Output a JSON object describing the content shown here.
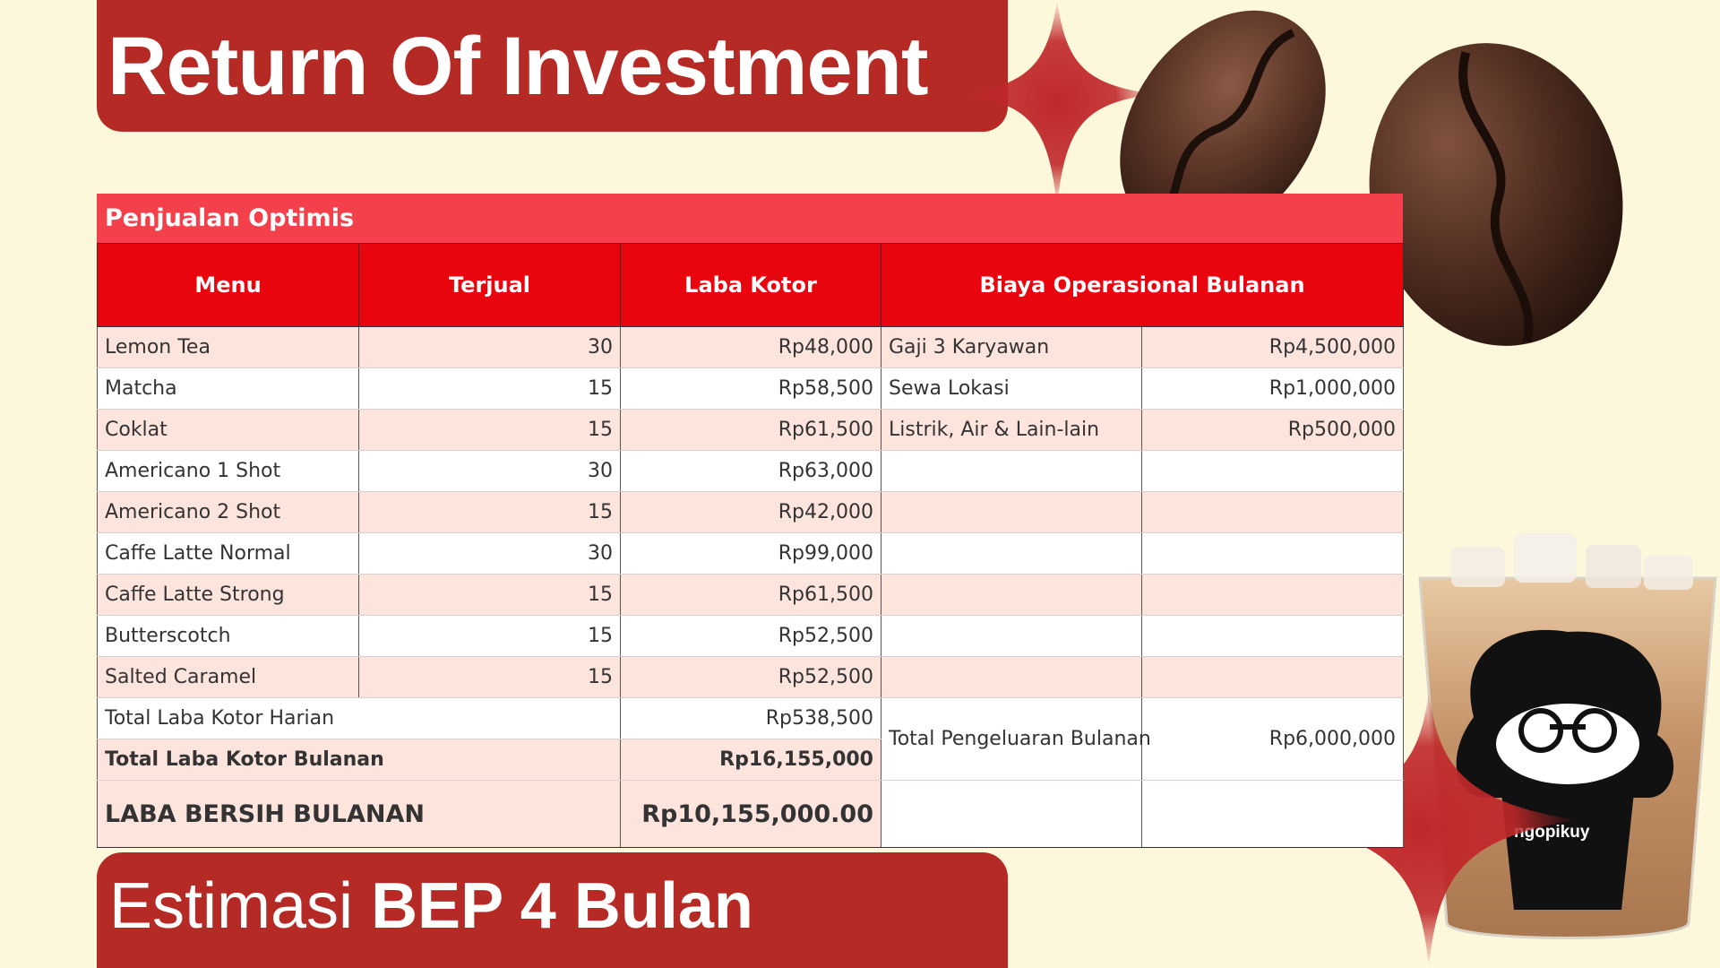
{
  "title": "Return Of Investment",
  "table": {
    "caption": "Penjualan Optimis",
    "headers": [
      "Menu",
      "Terjual",
      "Laba Kotor",
      "Biaya Operasional Bulanan"
    ],
    "rows": [
      {
        "menu": "Lemon Tea",
        "sold": "30",
        "gross": "Rp48,000",
        "op_name": "Gaji 3 Karyawan",
        "op_value": "Rp4,500,000"
      },
      {
        "menu": "Matcha",
        "sold": "15",
        "gross": "Rp58,500",
        "op_name": "Sewa Lokasi",
        "op_value": "Rp1,000,000"
      },
      {
        "menu": "Coklat",
        "sold": "15",
        "gross": "Rp61,500",
        "op_name": "Listrik, Air & Lain-lain",
        "op_value": "Rp500,000"
      },
      {
        "menu": "Americano 1 Shot",
        "sold": "30",
        "gross": "Rp63,000",
        "op_name": "",
        "op_value": ""
      },
      {
        "menu": "Americano 2 Shot",
        "sold": "15",
        "gross": "Rp42,000",
        "op_name": "",
        "op_value": ""
      },
      {
        "menu": "Caffe Latte Normal",
        "sold": "30",
        "gross": "Rp99,000",
        "op_name": "",
        "op_value": ""
      },
      {
        "menu": "Caffe Latte Strong",
        "sold": "15",
        "gross": "Rp61,500",
        "op_name": "",
        "op_value": ""
      },
      {
        "menu": "Butterscotch",
        "sold": "15",
        "gross": "Rp52,500",
        "op_name": "",
        "op_value": ""
      },
      {
        "menu": "Salted Caramel",
        "sold": "15",
        "gross": "Rp52,500",
        "op_name": "",
        "op_value": ""
      }
    ],
    "daily_label": "Total Laba Kotor Harian",
    "daily_value": "Rp538,500",
    "monthly_label": "Total Laba Kotor Bulanan",
    "monthly_value": "Rp16,155,000",
    "expense_label": "Total Pengeluaran Bulanan",
    "expense_value": "Rp6,000,000",
    "net_label": "LABA BERSIH BULANAN",
    "net_value": "Rp10,155,000.00"
  },
  "bep": {
    "prefix": "Estimasi",
    "highlight": "BEP 4 Bulan"
  },
  "logo_text": "ngopikuy",
  "colors": {
    "banner": "#b52a24",
    "header_red": "#e8050d",
    "caption_red": "#f4404a",
    "row_pink": "#fde4dd",
    "background": "#fdf8dc"
  }
}
